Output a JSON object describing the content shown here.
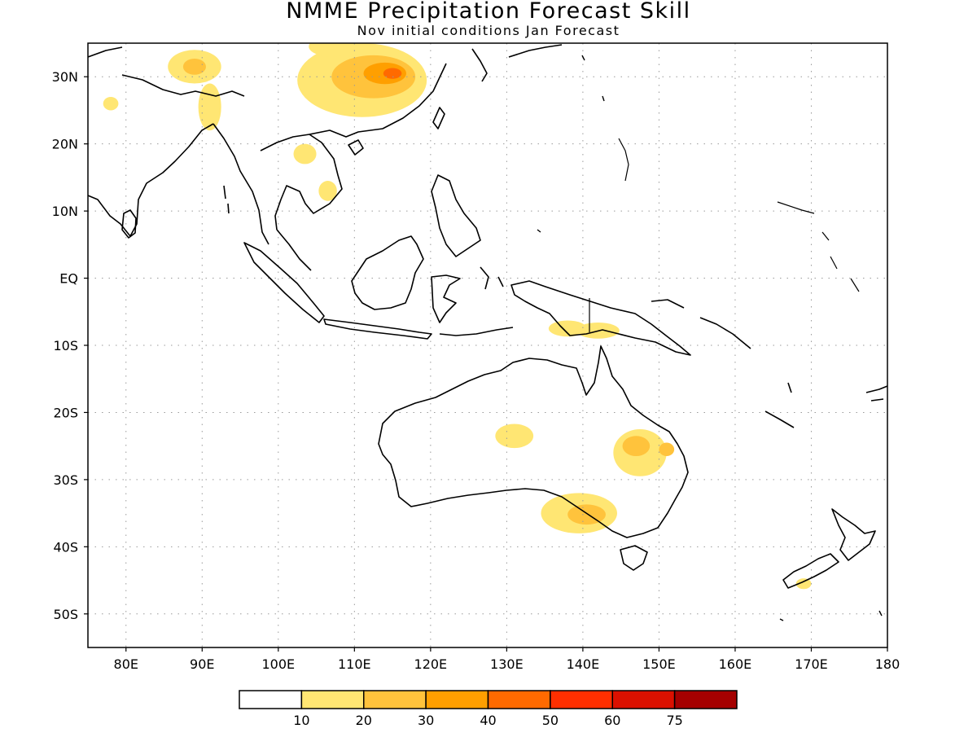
{
  "header": {
    "title": "NMME Precipitation Forecast Skill",
    "subtitle": "Nov initial conditions  Jan Forecast"
  },
  "map": {
    "lon_range": [
      75,
      180
    ],
    "lat_range": [
      -55,
      35
    ],
    "lon_ticks": [
      {
        "value": 80,
        "label": "80E"
      },
      {
        "value": 90,
        "label": "90E"
      },
      {
        "value": 100,
        "label": "100E"
      },
      {
        "value": 110,
        "label": "110E"
      },
      {
        "value": 120,
        "label": "120E"
      },
      {
        "value": 130,
        "label": "130E"
      },
      {
        "value": 140,
        "label": "140E"
      },
      {
        "value": 150,
        "label": "150E"
      },
      {
        "value": 160,
        "label": "160E"
      },
      {
        "value": 170,
        "label": "170E"
      },
      {
        "value": 180,
        "label": "180"
      }
    ],
    "lat_ticks": [
      {
        "value": 30,
        "label": "30N"
      },
      {
        "value": 20,
        "label": "20N"
      },
      {
        "value": 10,
        "label": "10N"
      },
      {
        "value": 0,
        "label": "EQ"
      },
      {
        "value": -10,
        "label": "10S"
      },
      {
        "value": -20,
        "label": "20S"
      },
      {
        "value": -30,
        "label": "30S"
      },
      {
        "value": -40,
        "label": "40S"
      },
      {
        "value": -50,
        "label": "50S"
      }
    ],
    "grid": true,
    "skill_regions": [
      {
        "lon": 89,
        "lat": 31.5,
        "rlon": 3.5,
        "rlat": 2.5,
        "level": 1
      },
      {
        "lon": 89,
        "lat": 31.5,
        "rlon": 1.5,
        "rlat": 1.2,
        "level": 2
      },
      {
        "lon": 91,
        "lat": 25.5,
        "rlon": 1.5,
        "rlat": 3.5,
        "level": 1
      },
      {
        "lon": 111,
        "lat": 29.5,
        "rlon": 8.5,
        "rlat": 5.5,
        "level": 1
      },
      {
        "lon": 112.5,
        "lat": 30,
        "rlon": 5.5,
        "rlat": 3.2,
        "level": 2
      },
      {
        "lon": 114,
        "lat": 30.5,
        "rlon": 2.8,
        "rlat": 1.6,
        "level": 3
      },
      {
        "lon": 115,
        "lat": 30.5,
        "rlon": 1.2,
        "rlat": 0.8,
        "level": 4
      },
      {
        "lon": 107,
        "lat": 34.5,
        "rlon": 3,
        "rlat": 1.5,
        "level": 1
      },
      {
        "lon": 106.5,
        "lat": 13,
        "rlon": 1.2,
        "rlat": 1.5,
        "level": 1
      },
      {
        "lon": 103.5,
        "lat": 18.5,
        "rlon": 1.5,
        "rlat": 1.5,
        "level": 1
      },
      {
        "lon": 78,
        "lat": 26,
        "rlon": 1,
        "rlat": 1,
        "level": 1
      },
      {
        "lon": 138,
        "lat": -7.5,
        "rlon": 2.5,
        "rlat": 1.2,
        "level": 1
      },
      {
        "lon": 142,
        "lat": -7.8,
        "rlon": 2.8,
        "rlat": 1.2,
        "level": 1
      },
      {
        "lon": 131,
        "lat": -23.5,
        "rlon": 2.5,
        "rlat": 1.8,
        "level": 1
      },
      {
        "lon": 147.5,
        "lat": -26,
        "rlon": 3.5,
        "rlat": 3.5,
        "level": 1
      },
      {
        "lon": 147,
        "lat": -25,
        "rlon": 1.8,
        "rlat": 1.5,
        "level": 2
      },
      {
        "lon": 151,
        "lat": -25.5,
        "rlon": 1,
        "rlat": 1,
        "level": 2
      },
      {
        "lon": 139.5,
        "lat": -35,
        "rlon": 5,
        "rlat": 3,
        "level": 1
      },
      {
        "lon": 140.5,
        "lat": -35.2,
        "rlon": 2.5,
        "rlat": 1.5,
        "level": 2
      },
      {
        "lon": 169,
        "lat": -45.5,
        "rlon": 1,
        "rlat": 0.8,
        "level": 1
      }
    ],
    "colors": {
      "land_outline": "#000000",
      "grid": "#9a9a9a"
    }
  },
  "colorbar": {
    "colors": [
      "#ffffff",
      "#ffe673",
      "#ffc33c",
      "#ff9f00",
      "#ff6a00",
      "#ff2f00",
      "#db1100",
      "#a50000"
    ],
    "labels": [
      "10",
      "20",
      "30",
      "40",
      "50",
      "60",
      "75"
    ]
  }
}
